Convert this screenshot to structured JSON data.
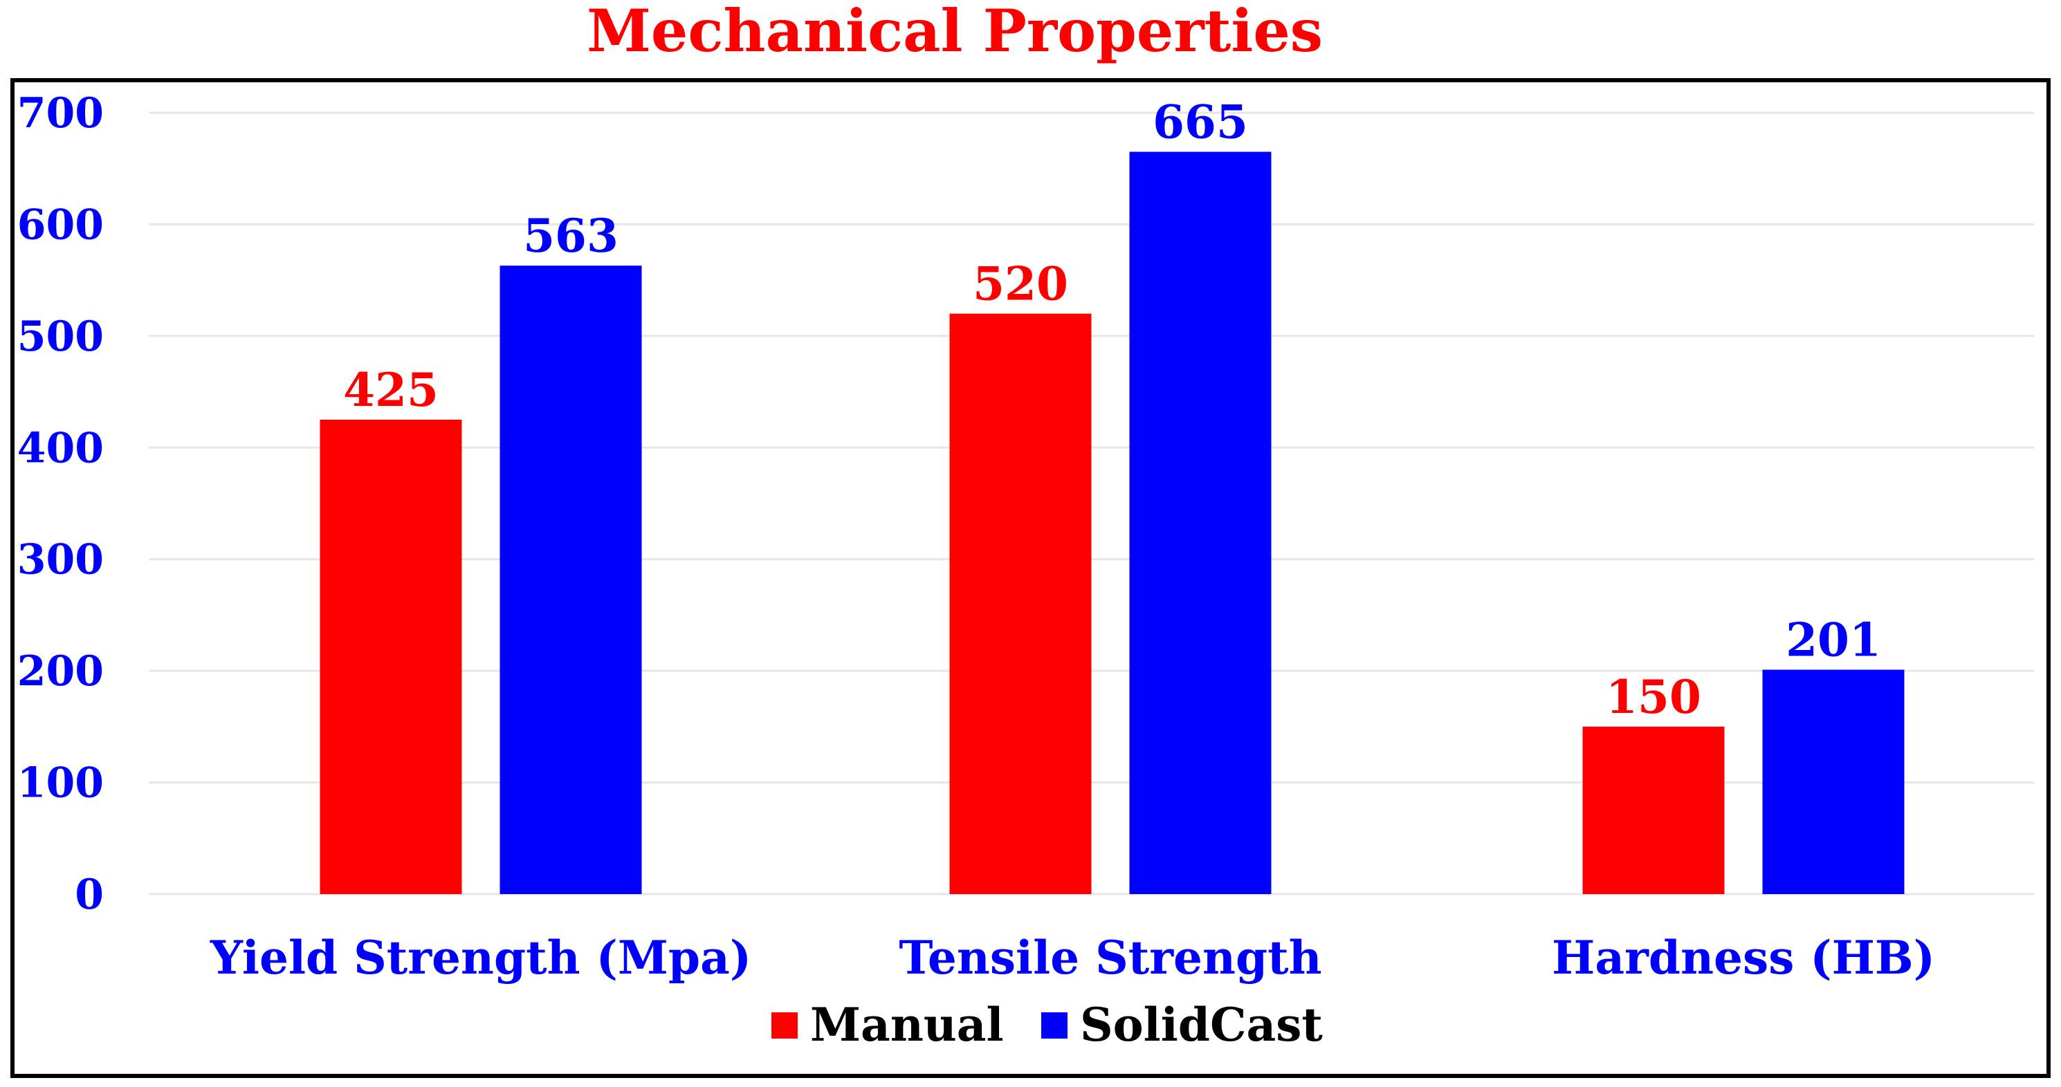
{
  "chart_data": {
    "type": "bar",
    "title": "Mechanical Properties",
    "categories": [
      "Yield Strength (Mpa)",
      "Tensile Strength",
      "Hardness (HB)"
    ],
    "series": [
      {
        "name": "Manual",
        "values": [
          425,
          520,
          150
        ],
        "color": "#ff0000"
      },
      {
        "name": "SolidCast",
        "values": [
          563,
          665,
          201
        ],
        "color": "#0000ff"
      }
    ],
    "ylim": [
      0,
      700
    ],
    "yticks": [
      0,
      100,
      200,
      300,
      400,
      500,
      600,
      700
    ],
    "ytick_labels": [
      "0",
      "100",
      "200",
      "300",
      "400",
      "500",
      "600",
      "700"
    ],
    "xlabel": "",
    "ylabel": "",
    "grid": true,
    "legend_position": "bottom",
    "colors": {
      "title": "#ff0000",
      "axis_text": "#0000ff",
      "grid": "#e6e6e6",
      "frame": "#000000"
    }
  }
}
